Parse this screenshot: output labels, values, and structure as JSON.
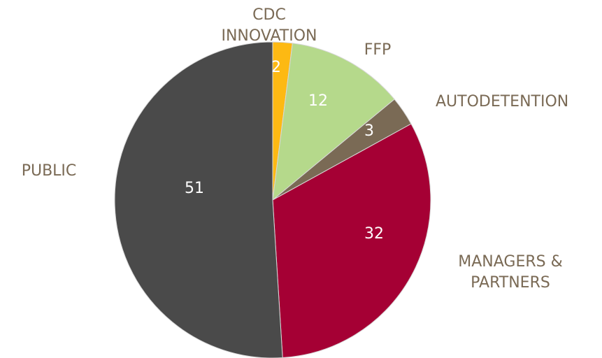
{
  "chart_data": {
    "type": "pie",
    "categories": [
      "CDC INNOVATION",
      "FFP",
      "AUTODETENTION",
      "MANAGERS & PARTNERS",
      "PUBLIC"
    ],
    "values": [
      2,
      12,
      3,
      32,
      51
    ],
    "colors": [
      "#fdb913",
      "#b5d98b",
      "#7a6a55",
      "#a50034",
      "#4a4a4a"
    ]
  }
}
